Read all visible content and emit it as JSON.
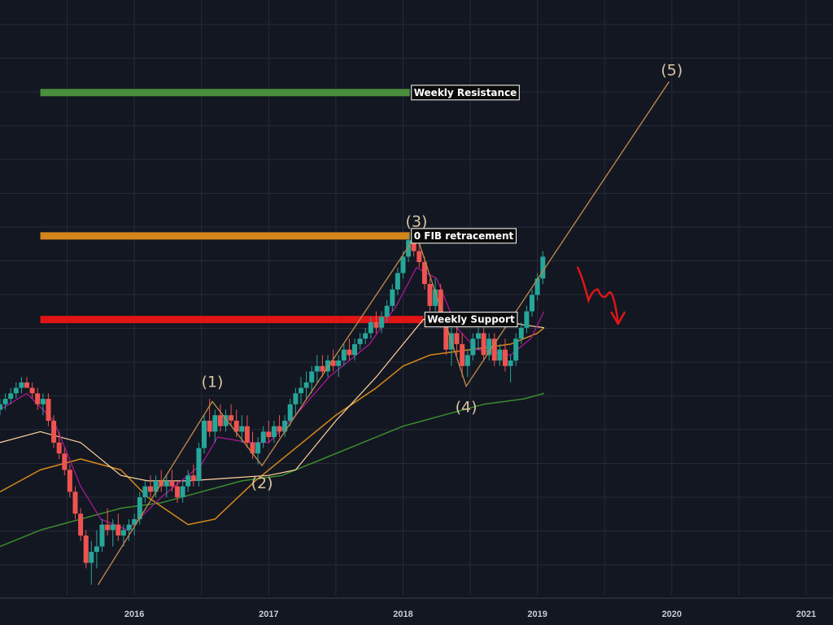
{
  "chart_data": {
    "type": "candlestick",
    "x_axis": {
      "ticks": [
        "2016",
        "2017",
        "2018",
        "2019",
        "2020",
        "2021"
      ],
      "range": [
        2015.0,
        2021.2
      ]
    },
    "y_range": [
      0.0,
      100.0
    ],
    "grid": true,
    "colors": {
      "background": "#131722",
      "grid": "#262b38",
      "up": "#26a69a",
      "down": "#ef5350",
      "ma_fast": "#b5179e",
      "ma_mid": "#ffd39b",
      "ma_slow": "#d68a1a",
      "ma_long": "#3b8c2e",
      "resistance": "#4a8f3c",
      "fib": "#d4861a",
      "support": "#e01515",
      "wave": "#b8864a",
      "projection": "#e01515"
    },
    "levels": [
      {
        "label": "Weekly Resistance",
        "y": 92.0,
        "from": 2015.3,
        "to": 2018.05,
        "color": "#4a8f3c"
      },
      {
        "label": "0 FIB retracement",
        "y": 65.8,
        "from": 2015.3,
        "to": 2018.05,
        "color": "#d4861a"
      },
      {
        "label": "Weekly Support",
        "y": 50.5,
        "from": 2015.3,
        "to": 2018.15,
        "color": "#e01515"
      }
    ],
    "waves": [
      {
        "label": "(1)",
        "x": 2016.58,
        "y": 35.5
      },
      {
        "label": "(2)",
        "x": 2016.95,
        "y": 23.8
      },
      {
        "label": "(3)",
        "x": 2018.1,
        "y": 66.0
      },
      {
        "label": "(4)",
        "x": 2018.47,
        "y": 38.3
      },
      {
        "label": "(5)",
        "x": 2020.0,
        "y": 94.0
      }
    ],
    "wave_path": [
      {
        "x": 2015.73,
        "y": 2.0
      },
      {
        "x": 2016.58,
        "y": 35.5
      },
      {
        "x": 2016.95,
        "y": 23.8
      },
      {
        "x": 2018.1,
        "y": 66.0
      },
      {
        "x": 2018.47,
        "y": 38.3
      },
      {
        "x": 2019.98,
        "y": 94.0
      }
    ],
    "candles": [
      [
        2015.0,
        34,
        36,
        33,
        35
      ],
      [
        2015.04,
        35,
        37,
        34,
        36
      ],
      [
        2015.08,
        36,
        38,
        35,
        37
      ],
      [
        2015.12,
        37,
        39,
        36,
        38
      ],
      [
        2015.16,
        38,
        40,
        37,
        39
      ],
      [
        2015.2,
        39,
        40,
        38,
        38
      ],
      [
        2015.24,
        38,
        39,
        36,
        37
      ],
      [
        2015.28,
        37,
        38,
        34,
        35
      ],
      [
        2015.32,
        35,
        37,
        33,
        36
      ],
      [
        2015.36,
        36,
        37,
        31,
        32
      ],
      [
        2015.4,
        32,
        33,
        27,
        28
      ],
      [
        2015.44,
        28,
        30,
        25,
        26
      ],
      [
        2015.48,
        26,
        27,
        22,
        23
      ],
      [
        2015.52,
        23,
        24,
        18,
        19
      ],
      [
        2015.56,
        19,
        20,
        14,
        15
      ],
      [
        2015.6,
        15,
        16,
        10,
        11
      ],
      [
        2015.64,
        11,
        12,
        5,
        6
      ],
      [
        2015.68,
        6,
        10,
        2,
        8
      ],
      [
        2015.72,
        8,
        12,
        5,
        9
      ],
      [
        2015.76,
        9,
        14,
        8,
        13
      ],
      [
        2015.8,
        13,
        16,
        11,
        12
      ],
      [
        2015.84,
        12,
        14,
        9,
        13
      ],
      [
        2015.88,
        13,
        15,
        10,
        11
      ],
      [
        2015.92,
        11,
        13,
        9,
        12
      ],
      [
        2015.96,
        12,
        14,
        10,
        13
      ],
      [
        2016.0,
        13,
        15,
        11,
        14
      ],
      [
        2016.04,
        14,
        19,
        13,
        18
      ],
      [
        2016.08,
        18,
        21,
        17,
        20
      ],
      [
        2016.12,
        20,
        22,
        18,
        19
      ],
      [
        2016.16,
        19,
        22,
        18,
        21
      ],
      [
        2016.2,
        21,
        23,
        19,
        20
      ],
      [
        2016.24,
        20,
        22,
        18,
        21
      ],
      [
        2016.28,
        21,
        23,
        19,
        20
      ],
      [
        2016.32,
        20,
        21,
        17,
        18
      ],
      [
        2016.36,
        18,
        21,
        17,
        20
      ],
      [
        2016.4,
        20,
        23,
        19,
        22
      ],
      [
        2016.44,
        22,
        24,
        20,
        21
      ],
      [
        2016.48,
        21,
        28,
        20,
        27
      ],
      [
        2016.52,
        27,
        33,
        26,
        32
      ],
      [
        2016.56,
        32,
        36,
        29,
        30
      ],
      [
        2016.6,
        30,
        34,
        28,
        33
      ],
      [
        2016.64,
        33,
        35,
        30,
        31
      ],
      [
        2016.68,
        31,
        34,
        30,
        33
      ],
      [
        2016.72,
        33,
        35,
        31,
        32
      ],
      [
        2016.76,
        32,
        34,
        29,
        30
      ],
      [
        2016.8,
        30,
        33,
        28,
        31
      ],
      [
        2016.84,
        31,
        33,
        27,
        28
      ],
      [
        2016.88,
        28,
        30,
        25,
        26
      ],
      [
        2016.92,
        26,
        29,
        24,
        28
      ],
      [
        2016.96,
        28,
        31,
        27,
        30
      ],
      [
        2017.0,
        30,
        32,
        28,
        29
      ],
      [
        2017.04,
        29,
        32,
        28,
        31
      ],
      [
        2017.08,
        31,
        33,
        29,
        30
      ],
      [
        2017.12,
        30,
        33,
        29,
        32
      ],
      [
        2017.16,
        32,
        36,
        31,
        35
      ],
      [
        2017.2,
        35,
        38,
        33,
        37
      ],
      [
        2017.24,
        37,
        40,
        35,
        38
      ],
      [
        2017.28,
        38,
        41,
        36,
        39
      ],
      [
        2017.32,
        39,
        42,
        37,
        41
      ],
      [
        2017.36,
        41,
        44,
        39,
        42
      ],
      [
        2017.4,
        42,
        44,
        40,
        41
      ],
      [
        2017.44,
        41,
        44,
        40,
        43
      ],
      [
        2017.48,
        43,
        45,
        41,
        42
      ],
      [
        2017.52,
        42,
        44,
        40,
        43
      ],
      [
        2017.56,
        43,
        46,
        42,
        45
      ],
      [
        2017.6,
        45,
        47,
        43,
        44
      ],
      [
        2017.64,
        44,
        47,
        43,
        46
      ],
      [
        2017.68,
        46,
        48,
        45,
        47
      ],
      [
        2017.72,
        47,
        49,
        46,
        48
      ],
      [
        2017.76,
        48,
        51,
        47,
        50
      ],
      [
        2017.8,
        50,
        52,
        48,
        49
      ],
      [
        2017.84,
        49,
        52,
        48,
        51
      ],
      [
        2017.88,
        51,
        54,
        50,
        53
      ],
      [
        2017.92,
        53,
        57,
        52,
        56
      ],
      [
        2017.96,
        56,
        60,
        55,
        59
      ],
      [
        2018.0,
        59,
        63,
        58,
        62
      ],
      [
        2018.04,
        62,
        66,
        61,
        65
      ],
      [
        2018.08,
        65,
        66,
        62,
        63
      ],
      [
        2018.12,
        63,
        66,
        60,
        61
      ],
      [
        2018.16,
        61,
        62,
        56,
        57
      ],
      [
        2018.2,
        57,
        58,
        52,
        53
      ],
      [
        2018.24,
        53,
        58,
        52,
        56
      ],
      [
        2018.28,
        56,
        57,
        49,
        50
      ],
      [
        2018.32,
        50,
        51,
        44,
        45
      ],
      [
        2018.36,
        45,
        49,
        42,
        48
      ],
      [
        2018.4,
        48,
        50,
        44,
        46
      ],
      [
        2018.44,
        46,
        48,
        40,
        42
      ],
      [
        2018.48,
        42,
        45,
        40,
        44
      ],
      [
        2018.52,
        44,
        48,
        43,
        47
      ],
      [
        2018.56,
        47,
        49,
        45,
        48
      ],
      [
        2018.6,
        48,
        49,
        43,
        44
      ],
      [
        2018.64,
        44,
        48,
        43,
        47
      ],
      [
        2018.68,
        47,
        48,
        42,
        43
      ],
      [
        2018.72,
        43,
        46,
        42,
        45
      ],
      [
        2018.76,
        45,
        47,
        41,
        42
      ],
      [
        2018.8,
        42,
        44,
        39,
        43
      ],
      [
        2018.84,
        43,
        48,
        42,
        47
      ],
      [
        2018.88,
        47,
        50,
        46,
        49
      ],
      [
        2018.92,
        49,
        53,
        48,
        52
      ],
      [
        2018.96,
        52,
        56,
        51,
        55
      ],
      [
        2019.0,
        55,
        59,
        54,
        58
      ],
      [
        2019.04,
        58,
        63,
        57,
        62
      ]
    ],
    "ma_fast": [
      [
        2015.0,
        34
      ],
      [
        2015.2,
        37
      ],
      [
        2015.4,
        32
      ],
      [
        2015.6,
        20
      ],
      [
        2015.75,
        14
      ],
      [
        2015.95,
        12
      ],
      [
        2016.2,
        18
      ],
      [
        2016.5,
        24
      ],
      [
        2016.62,
        29
      ],
      [
        2016.85,
        28
      ],
      [
        2017.0,
        28
      ],
      [
        2017.2,
        33
      ],
      [
        2017.45,
        40
      ],
      [
        2017.75,
        46
      ],
      [
        2017.95,
        53
      ],
      [
        2018.1,
        60
      ],
      [
        2018.25,
        58
      ],
      [
        2018.4,
        49
      ],
      [
        2018.55,
        45
      ],
      [
        2018.8,
        44
      ],
      [
        2018.95,
        47
      ],
      [
        2019.05,
        52
      ]
    ],
    "ma_mid": [
      [
        2015.0,
        28
      ],
      [
        2015.3,
        30
      ],
      [
        2015.6,
        28
      ],
      [
        2015.9,
        22
      ],
      [
        2016.1,
        21
      ],
      [
        2016.4,
        21
      ],
      [
        2016.7,
        21.5
      ],
      [
        2017.0,
        22
      ],
      [
        2017.2,
        23
      ],
      [
        2017.5,
        32
      ],
      [
        2017.8,
        40
      ],
      [
        2018.0,
        46
      ],
      [
        2018.15,
        50.5
      ],
      [
        2018.4,
        51.5
      ],
      [
        2018.7,
        50.5
      ],
      [
        2018.9,
        49.5
      ],
      [
        2019.05,
        49
      ]
    ],
    "ma_slow": [
      [
        2015.0,
        19
      ],
      [
        2015.3,
        23
      ],
      [
        2015.6,
        25
      ],
      [
        2015.9,
        23
      ],
      [
        2016.1,
        18
      ],
      [
        2016.4,
        13
      ],
      [
        2016.6,
        14
      ],
      [
        2016.9,
        21
      ],
      [
        2017.2,
        27
      ],
      [
        2017.5,
        33
      ],
      [
        2017.8,
        38
      ],
      [
        2018.0,
        42
      ],
      [
        2018.2,
        44
      ],
      [
        2018.5,
        45
      ],
      [
        2018.8,
        46
      ],
      [
        2019.0,
        48
      ],
      [
        2019.05,
        49
      ]
    ],
    "ma_long": [
      [
        2015.0,
        9
      ],
      [
        2015.3,
        12
      ],
      [
        2015.6,
        14
      ],
      [
        2015.9,
        16
      ],
      [
        2016.2,
        17
      ],
      [
        2016.5,
        19
      ],
      [
        2016.8,
        21
      ],
      [
        2017.1,
        22
      ],
      [
        2017.4,
        25
      ],
      [
        2017.7,
        28
      ],
      [
        2018.0,
        31
      ],
      [
        2018.3,
        33
      ],
      [
        2018.6,
        35
      ],
      [
        2018.9,
        36
      ],
      [
        2019.05,
        37
      ]
    ],
    "projection": [
      [
        2019.3,
        60
      ],
      [
        2019.38,
        54
      ],
      [
        2019.45,
        56
      ],
      [
        2019.52,
        55
      ],
      [
        2019.6,
        50
      ]
    ]
  }
}
